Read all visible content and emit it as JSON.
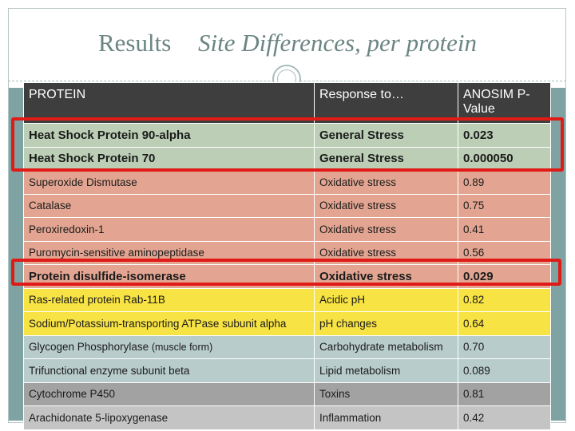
{
  "title": {
    "main": "Results",
    "sub": "Site Differences, per protein"
  },
  "table": {
    "headers": [
      "PROTEIN",
      "Response to…",
      "ANOSIM P-Value"
    ],
    "rows": [
      {
        "protein": "Heat Shock Protein 90-alpha",
        "response": "General Stress",
        "p": "0.023"
      },
      {
        "protein": "Heat Shock Protein 70",
        "response": "General Stress",
        "p": "0.000050"
      },
      {
        "protein": "Superoxide Dismutase",
        "response": "Oxidative stress",
        "p": "0.89"
      },
      {
        "protein": "Catalase",
        "response": "Oxidative stress",
        "p": "0.75"
      },
      {
        "protein": "Peroxiredoxin-1",
        "response": "Oxidative stress",
        "p": "0.41"
      },
      {
        "protein": "Puromycin-sensitive aminopeptidase",
        "response": "Oxidative stress",
        "p": "0.56"
      },
      {
        "protein": "Protein disulfide-isomerase",
        "response": "Oxidative stress",
        "p": "0.029"
      },
      {
        "protein": "Ras-related protein Rab-11B",
        "response": "Acidic pH",
        "p": "0.82"
      },
      {
        "protein": "Sodium/Potassium-transporting ATPase subunit alpha",
        "response": "pH changes",
        "p": "0.64"
      },
      {
        "protein": "Glycogen Phosphorylase",
        "protein_note": "(muscle form)",
        "response": "Carbohydrate metabolism",
        "p": "0.70"
      },
      {
        "protein": "Trifunctional enzyme subunit beta",
        "response": "Lipid metabolism",
        "p": "0.089"
      },
      {
        "protein": "Cytochrome P450",
        "response": "Toxins",
        "p": "0.81"
      },
      {
        "protein": "Arachidonate 5-lipoxygenase",
        "response": "Inflammation",
        "p": "0.42"
      }
    ]
  },
  "colors": {
    "title": "#6b8583",
    "header_bg": "#3e3e3e",
    "general_stress": "#bccfb6",
    "oxidative_stress": "#e3a591",
    "ph": "#f7e343",
    "metabolism": "#b8cccb",
    "toxins": "#a2a2a2",
    "inflammation": "#c4c4c4",
    "highlight": "#e01b17"
  }
}
